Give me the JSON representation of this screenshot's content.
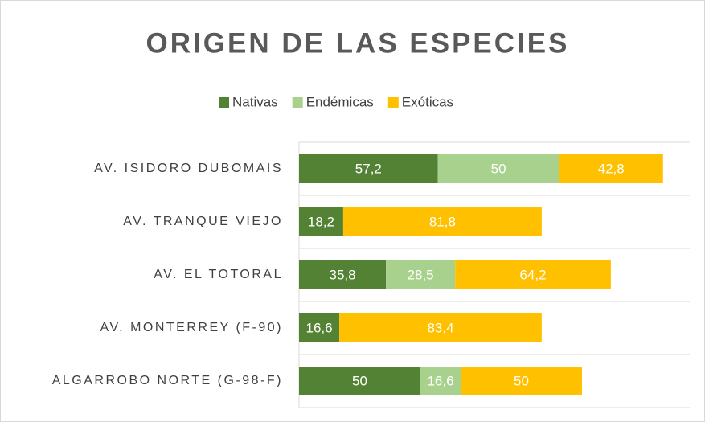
{
  "chart_data": {
    "type": "bar",
    "orientation": "horizontal",
    "stacked": true,
    "title": "ORIGEN DE LAS ESPECIES",
    "categories": [
      "AV. ISIDORO DUBOMAIS",
      "AV. TRANQUE VIEJO",
      "AV. EL TOTORAL",
      "AV. MONTERREY (F-90)",
      "ALGARROBO NORTE (G-98-F)"
    ],
    "series": [
      {
        "name": "Nativas",
        "color": "#548235",
        "values": [
          57.2,
          18.2,
          35.8,
          16.6,
          50
        ],
        "value_labels": [
          "57,2",
          "18,2",
          "35,8",
          "16,6",
          "50"
        ]
      },
      {
        "name": "Endémicas",
        "color": "#a9d18e",
        "values": [
          50,
          null,
          28.5,
          null,
          16.6
        ],
        "value_labels": [
          "50",
          null,
          "28,5",
          null,
          "16,6"
        ]
      },
      {
        "name": "Exóticas",
        "color": "#ffc000",
        "values": [
          42.8,
          81.8,
          64.2,
          83.4,
          50
        ],
        "value_labels": [
          "42,8",
          "81,8",
          "64,2",
          "83,4",
          "50"
        ]
      }
    ],
    "xlim": [
      0,
      161
    ],
    "legend": "top"
  }
}
